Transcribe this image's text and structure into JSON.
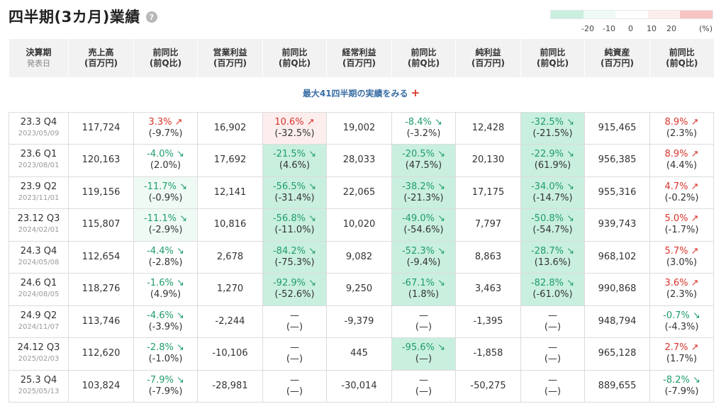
{
  "title": "四半期(3カ月)業績",
  "help_icon": "question-icon",
  "legend": {
    "colors": [
      "#c9efdf",
      "#effaf5",
      "#ffffff",
      "#fdeeee",
      "#f7c4c4"
    ],
    "labels": [
      "-20",
      "-10",
      "0",
      "10",
      "20",
      "(%)"
    ]
  },
  "columns": [
    {
      "label": "決算期",
      "sub": "発表日"
    },
    {
      "label": "売上高",
      "sub": "(百万円)"
    },
    {
      "label": "前同比",
      "sub": "(前Q比)"
    },
    {
      "label": "営業利益",
      "sub": "(百万円)"
    },
    {
      "label": "前同比",
      "sub": "(前Q比)"
    },
    {
      "label": "経常利益",
      "sub": "(百万円)"
    },
    {
      "label": "前同比",
      "sub": "(前Q比)"
    },
    {
      "label": "純利益",
      "sub": "(百万円)"
    },
    {
      "label": "前同比",
      "sub": "(前Q比)"
    },
    {
      "label": "純資産",
      "sub": "(百万円)"
    },
    {
      "label": "前同比",
      "sub": "(前Q比)"
    }
  ],
  "more_link": "最大41四半期の実績をみる",
  "more_plus": "+",
  "rows": [
    {
      "period": "23.3 Q4",
      "date": "2023/05/09",
      "sales": "117,724",
      "sales_yoy": {
        "t": "3.3% ↗",
        "p": "(-9.7%)",
        "dir": "up",
        "v": 3.3
      },
      "op": "16,902",
      "op_yoy": {
        "t": "10.6% ↗",
        "p": "(-32.5%)",
        "dir": "up",
        "v": 10.6
      },
      "ord": "19,002",
      "ord_yoy": {
        "t": "-8.4% ↘",
        "p": "(-3.2%)",
        "dir": "down",
        "v": -8.4
      },
      "net": "12,428",
      "net_yoy": {
        "t": "-32.5% ↘",
        "p": "(-21.5%)",
        "dir": "down",
        "v": -32.5
      },
      "assets": "915,465",
      "assets_yoy": {
        "t": "8.9% ↗",
        "p": "(2.3%)",
        "dir": "up",
        "v": 8.9
      }
    },
    {
      "period": "23.6 Q1",
      "date": "2023/08/01",
      "sales": "120,163",
      "sales_yoy": {
        "t": "-4.0% ↘",
        "p": "(2.0%)",
        "dir": "down",
        "v": -4.0
      },
      "op": "17,692",
      "op_yoy": {
        "t": "-21.5% ↘",
        "p": "(4.6%)",
        "dir": "down",
        "v": -21.5
      },
      "ord": "28,033",
      "ord_yoy": {
        "t": "-20.5% ↘",
        "p": "(47.5%)",
        "dir": "down",
        "v": -20.5
      },
      "net": "20,130",
      "net_yoy": {
        "t": "-22.9% ↘",
        "p": "(61.9%)",
        "dir": "down",
        "v": -22.9
      },
      "assets": "956,385",
      "assets_yoy": {
        "t": "8.9% ↗",
        "p": "(4.4%)",
        "dir": "up",
        "v": 8.9
      }
    },
    {
      "period": "23.9 Q2",
      "date": "2023/11/01",
      "sales": "119,156",
      "sales_yoy": {
        "t": "-11.7% ↘",
        "p": "(-0.9%)",
        "dir": "down",
        "v": -11.7
      },
      "op": "12,141",
      "op_yoy": {
        "t": "-56.5% ↘",
        "p": "(-31.4%)",
        "dir": "down",
        "v": -56.5
      },
      "ord": "22,065",
      "ord_yoy": {
        "t": "-38.2% ↘",
        "p": "(-21.3%)",
        "dir": "down",
        "v": -38.2
      },
      "net": "17,175",
      "net_yoy": {
        "t": "-34.0% ↘",
        "p": "(-14.7%)",
        "dir": "down",
        "v": -34.0
      },
      "assets": "955,316",
      "assets_yoy": {
        "t": "4.7% ↗",
        "p": "(-0.2%)",
        "dir": "up",
        "v": 4.7
      }
    },
    {
      "period": "23.12 Q3",
      "date": "2024/02/01",
      "sales": "115,807",
      "sales_yoy": {
        "t": "-11.1% ↘",
        "p": "(-2.9%)",
        "dir": "down",
        "v": -11.1
      },
      "op": "10,816",
      "op_yoy": {
        "t": "-56.8% ↘",
        "p": "(-11.0%)",
        "dir": "down",
        "v": -56.8
      },
      "ord": "10,020",
      "ord_yoy": {
        "t": "-49.0% ↘",
        "p": "(-54.6%)",
        "dir": "down",
        "v": -49.0
      },
      "net": "7,797",
      "net_yoy": {
        "t": "-50.8% ↘",
        "p": "(-54.7%)",
        "dir": "down",
        "v": -50.8
      },
      "assets": "939,743",
      "assets_yoy": {
        "t": "5.0% ↗",
        "p": "(-1.7%)",
        "dir": "up",
        "v": 5.0
      }
    },
    {
      "period": "24.3 Q4",
      "date": "2024/05/08",
      "sales": "112,654",
      "sales_yoy": {
        "t": "-4.4% ↘",
        "p": "(-2.8%)",
        "dir": "down",
        "v": -4.4
      },
      "op": "2,678",
      "op_yoy": {
        "t": "-84.2% ↘",
        "p": "(-75.3%)",
        "dir": "down",
        "v": -84.2
      },
      "ord": "9,082",
      "ord_yoy": {
        "t": "-52.3% ↘",
        "p": "(-9.4%)",
        "dir": "down",
        "v": -52.3
      },
      "net": "8,863",
      "net_yoy": {
        "t": "-28.7% ↘",
        "p": "(13.6%)",
        "dir": "down",
        "v": -28.7
      },
      "assets": "968,102",
      "assets_yoy": {
        "t": "5.7% ↗",
        "p": "(3.0%)",
        "dir": "up",
        "v": 5.7
      }
    },
    {
      "period": "24.6 Q1",
      "date": "2024/08/05",
      "sales": "118,276",
      "sales_yoy": {
        "t": "-1.6% ↘",
        "p": "(4.9%)",
        "dir": "down",
        "v": -1.6
      },
      "op": "1,270",
      "op_yoy": {
        "t": "-92.9% ↘",
        "p": "(-52.6%)",
        "dir": "down",
        "v": -92.9
      },
      "ord": "9,250",
      "ord_yoy": {
        "t": "-67.1% ↘",
        "p": "(1.8%)",
        "dir": "down",
        "v": -67.1
      },
      "net": "3,463",
      "net_yoy": {
        "t": "-82.8% ↘",
        "p": "(-61.0%)",
        "dir": "down",
        "v": -82.8
      },
      "assets": "990,868",
      "assets_yoy": {
        "t": "3.6% ↗",
        "p": "(2.3%)",
        "dir": "up",
        "v": 3.6
      }
    },
    {
      "period": "24.9 Q2",
      "date": "2024/11/07",
      "sales": "113,746",
      "sales_yoy": {
        "t": "-4.6% ↘",
        "p": "(-3.9%)",
        "dir": "down",
        "v": -4.6
      },
      "op": "-2,244",
      "op_yoy": {
        "t": "—",
        "p": "(—)",
        "dir": "none",
        "v": 0
      },
      "ord": "-9,379",
      "ord_yoy": {
        "t": "—",
        "p": "(—)",
        "dir": "none",
        "v": 0
      },
      "net": "-1,395",
      "net_yoy": {
        "t": "—",
        "p": "(—)",
        "dir": "none",
        "v": 0
      },
      "assets": "948,794",
      "assets_yoy": {
        "t": "-0.7% ↘",
        "p": "(-4.3%)",
        "dir": "down",
        "v": -0.7
      }
    },
    {
      "period": "24.12 Q3",
      "date": "2025/02/03",
      "sales": "112,620",
      "sales_yoy": {
        "t": "-2.8% ↘",
        "p": "(-1.0%)",
        "dir": "down",
        "v": -2.8
      },
      "op": "-10,106",
      "op_yoy": {
        "t": "—",
        "p": "(—)",
        "dir": "none",
        "v": 0
      },
      "ord": "445",
      "ord_yoy": {
        "t": "-95.6% ↘",
        "p": "(—)",
        "dir": "down",
        "v": -95.6
      },
      "net": "-1,858",
      "net_yoy": {
        "t": "—",
        "p": "(—)",
        "dir": "none",
        "v": 0
      },
      "assets": "965,128",
      "assets_yoy": {
        "t": "2.7% ↗",
        "p": "(1.7%)",
        "dir": "up",
        "v": 2.7
      }
    },
    {
      "period": "25.3 Q4",
      "date": "2025/05/13",
      "sales": "103,824",
      "sales_yoy": {
        "t": "-7.9% ↘",
        "p": "(-7.9%)",
        "dir": "down",
        "v": -7.9
      },
      "op": "-28,981",
      "op_yoy": {
        "t": "—",
        "p": "(—)",
        "dir": "none",
        "v": 0
      },
      "ord": "-30,014",
      "ord_yoy": {
        "t": "—",
        "p": "(—)",
        "dir": "none",
        "v": 0
      },
      "net": "-50,275",
      "net_yoy": {
        "t": "—",
        "p": "(—)",
        "dir": "none",
        "v": 0
      },
      "assets": "889,655",
      "assets_yoy": {
        "t": "-8.2% ↘",
        "p": "(-7.9%)",
        "dir": "down",
        "v": -8.2
      }
    }
  ]
}
